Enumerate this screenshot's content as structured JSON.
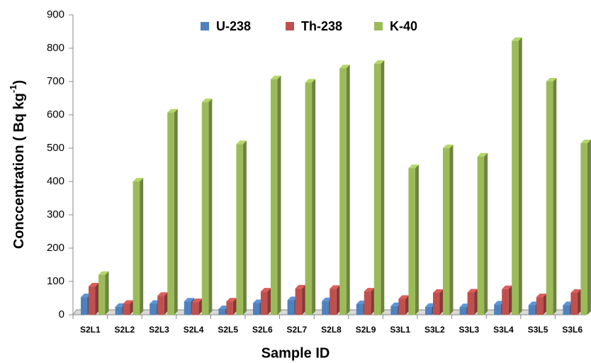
{
  "chart_data": {
    "type": "bar3d",
    "y_label": {
      "text": "Conccentration ( Bq kg",
      "superscript": "-1",
      "suffix": ")"
    },
    "x_label": "Sample ID",
    "categories": [
      "S2L1",
      "S2L2",
      "S2L3",
      "S2L4",
      "S2L5",
      "S2L6",
      "S2L7",
      "S2L8",
      "S2L9",
      "S3L1",
      "S3L2",
      "S3L3",
      "S3L4",
      "S3L5",
      "S3L6"
    ],
    "series": [
      {
        "name": "U-238",
        "color": "#4f81bd",
        "values": [
          53,
          24,
          33,
          40,
          17,
          35,
          44,
          41,
          32,
          26,
          24,
          23,
          31,
          29,
          29
        ]
      },
      {
        "name": "Th-238",
        "color": "#c0504d",
        "values": [
          85,
          33,
          57,
          38,
          40,
          70,
          79,
          78,
          70,
          48,
          66,
          67,
          77,
          53,
          66
        ]
      },
      {
        "name": "K-40",
        "color": "#9bbb59",
        "values": [
          120,
          400,
          607,
          638,
          512,
          707,
          697,
          740,
          753,
          440,
          500,
          475,
          822,
          700,
          515
        ]
      }
    ],
    "ylim": [
      0,
      900
    ],
    "yticks": [
      0,
      100,
      200,
      300,
      400,
      500,
      600,
      700,
      800,
      900
    ],
    "legend": "top"
  }
}
